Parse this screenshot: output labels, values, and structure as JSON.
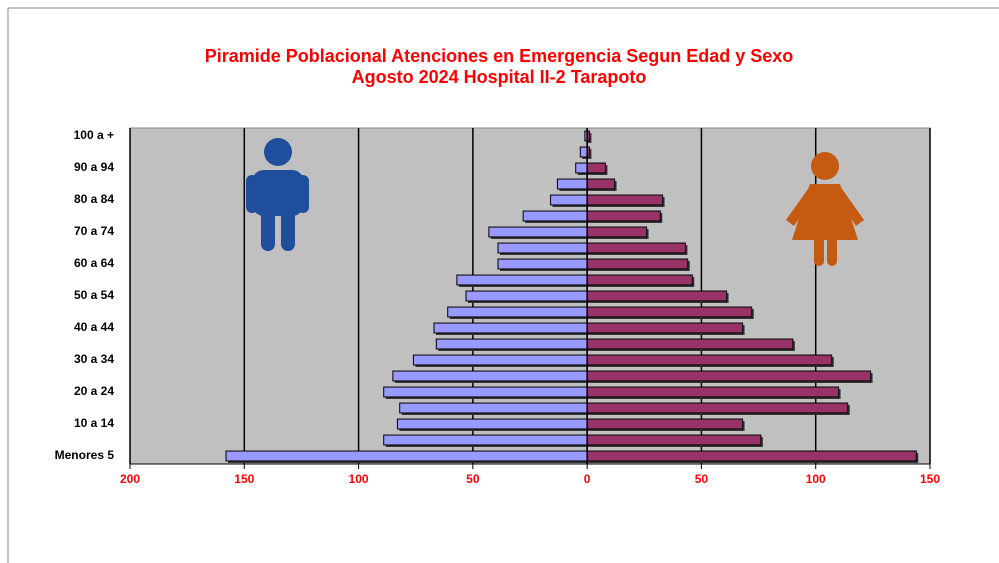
{
  "chart_data": {
    "type": "pyramid",
    "title": "Piramide Poblacional  Atenciones en Emergencia  Segun Edad y Sexo",
    "subtitle": "Agosto 2024  Hospital II-2 Tarapoto",
    "categories": [
      "100 a +",
      null,
      "90 a 94",
      null,
      "80 a 84",
      null,
      "70 a 74",
      null,
      "60 a 64",
      null,
      "50 a 54",
      null,
      "40 a 44",
      null,
      "30 a 34",
      null,
      "20 a 24",
      null,
      "10 a 14",
      null,
      "Menores 5"
    ],
    "series": [
      {
        "color": "#9999ff",
        "values": [
          -1,
          -3,
          -5,
          -13,
          -16,
          -28,
          -43,
          -39,
          -39,
          -57,
          -53,
          -61,
          -67,
          -66,
          -76,
          -85,
          -89,
          -82,
          -83,
          -89,
          -158
        ]
      },
      {
        "color": "#993366",
        "values": [
          1,
          1,
          8,
          12,
          33,
          32,
          26,
          43,
          44,
          46,
          61,
          72,
          68,
          90,
          107,
          124,
          110,
          114,
          68,
          76,
          144
        ]
      }
    ],
    "xlim": [
      -200,
      150
    ],
    "xticks": [
      {
        "value": -200,
        "label": "200"
      },
      {
        "value": -150,
        "label": "150"
      },
      {
        "value": -100,
        "label": "100"
      },
      {
        "value": -50,
        "label": "50"
      },
      0,
      50,
      100,
      150
    ],
    "grid": true,
    "plot_color": "#c0c0c0"
  }
}
